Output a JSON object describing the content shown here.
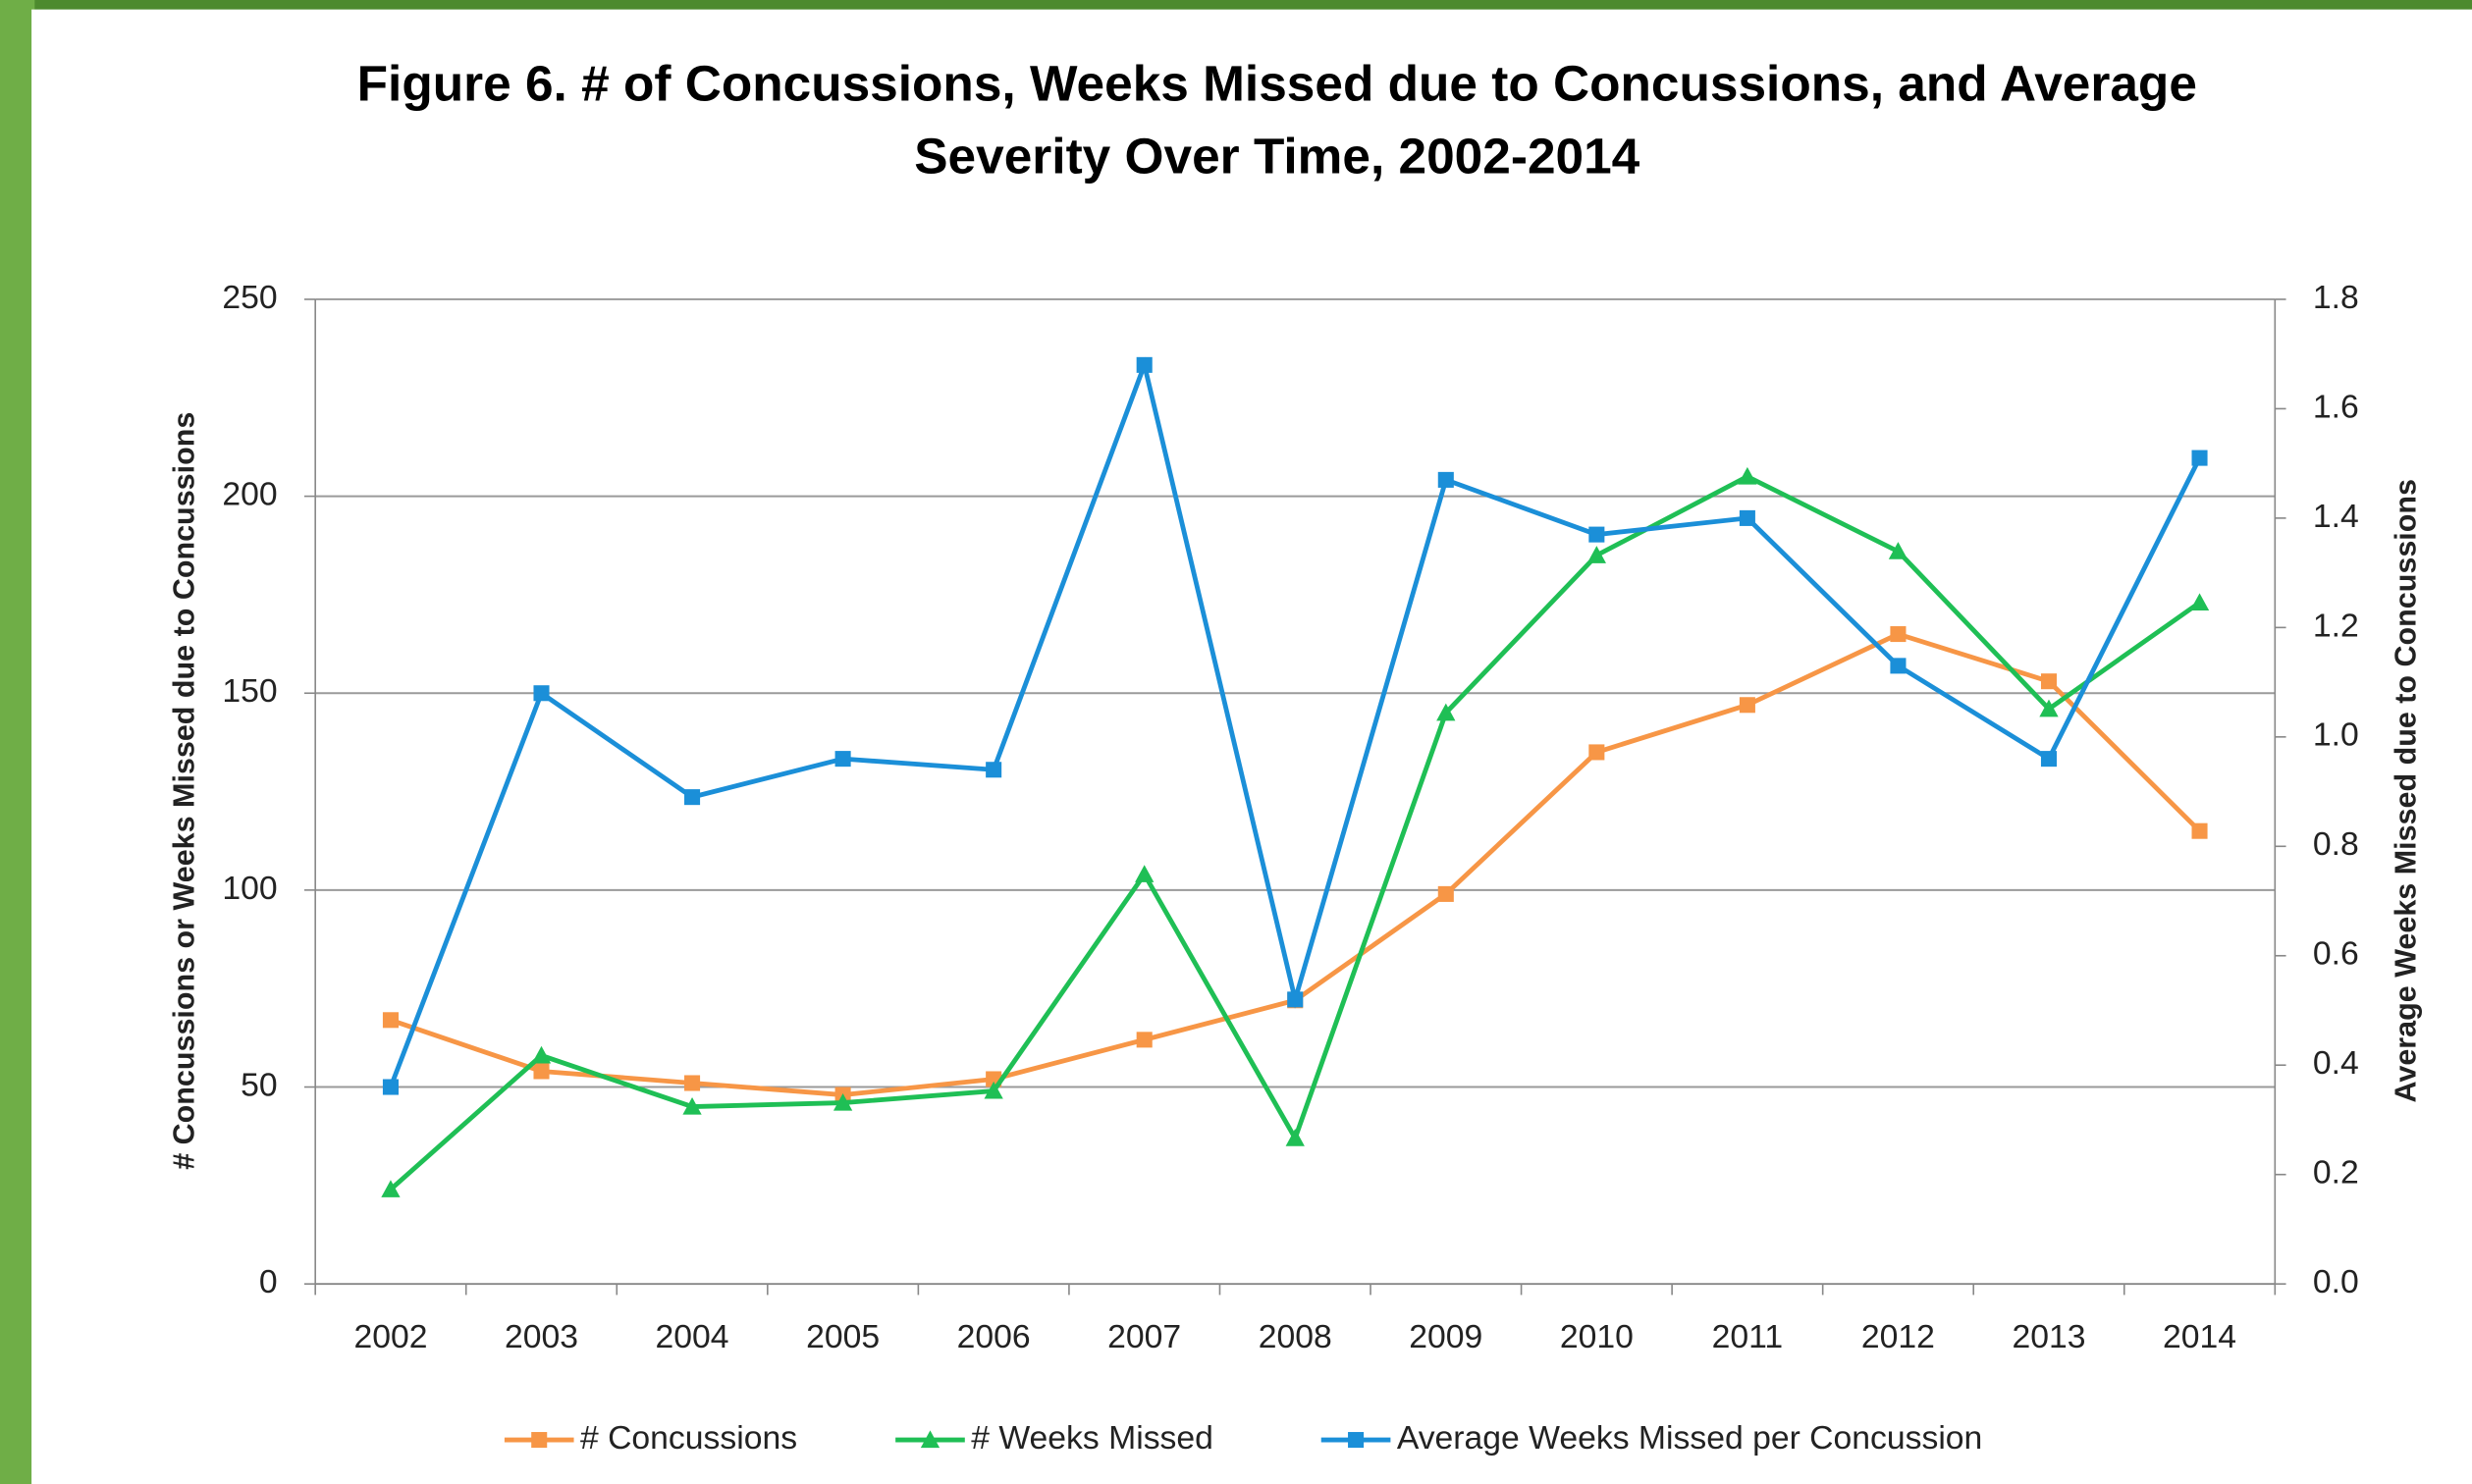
{
  "chart_data": {
    "type": "line",
    "title": "Figure 6. # of Concussions, Weeks Missed due to Concussions, and Average Severity Over Time, 2002-2014",
    "y_label": "# Concussions or Weeks Missed due to Concussions",
    "y2_label": "Average Weeks Missed due to Concussions",
    "categories": [
      "2002",
      "2003",
      "2004",
      "2005",
      "2006",
      "2007",
      "2008",
      "2009",
      "2010",
      "2011",
      "2012",
      "2013",
      "2014"
    ],
    "series": [
      {
        "name": "# Concussions",
        "color": "#f79646",
        "marker": "square",
        "values": [
          67,
          54,
          51,
          48,
          52,
          62,
          72,
          99,
          135,
          147,
          165,
          153,
          115
        ]
      },
      {
        "name": "# Weeks Missed",
        "color": "#1fbf55",
        "marker": "triangle",
        "values": [
          24,
          58,
          45,
          46,
          49,
          104,
          37,
          145,
          185,
          205,
          186,
          146,
          173
        ]
      },
      {
        "name": "Average Weeks Missed per Concussion",
        "color": "#1b8fd8",
        "marker": "square",
        "axis": "y2",
        "values": [
          0.36,
          1.08,
          0.89,
          0.96,
          0.94,
          1.68,
          0.52,
          1.47,
          1.37,
          1.4,
          1.13,
          0.96,
          1.51
        ]
      }
    ],
    "ylim": [
      0,
      250
    ],
    "yticks": [
      0,
      50,
      100,
      150,
      200,
      250
    ],
    "y2lim": [
      0,
      1.8
    ],
    "y2ticks": [
      {
        "value": 0,
        "label": "0.0"
      },
      0.2,
      0.4,
      0.6,
      0.8,
      {
        "value": 1,
        "label": "1.0"
      },
      1.2,
      1.4,
      1.6,
      1.8
    ],
    "grid": true,
    "legend": "bottom"
  }
}
